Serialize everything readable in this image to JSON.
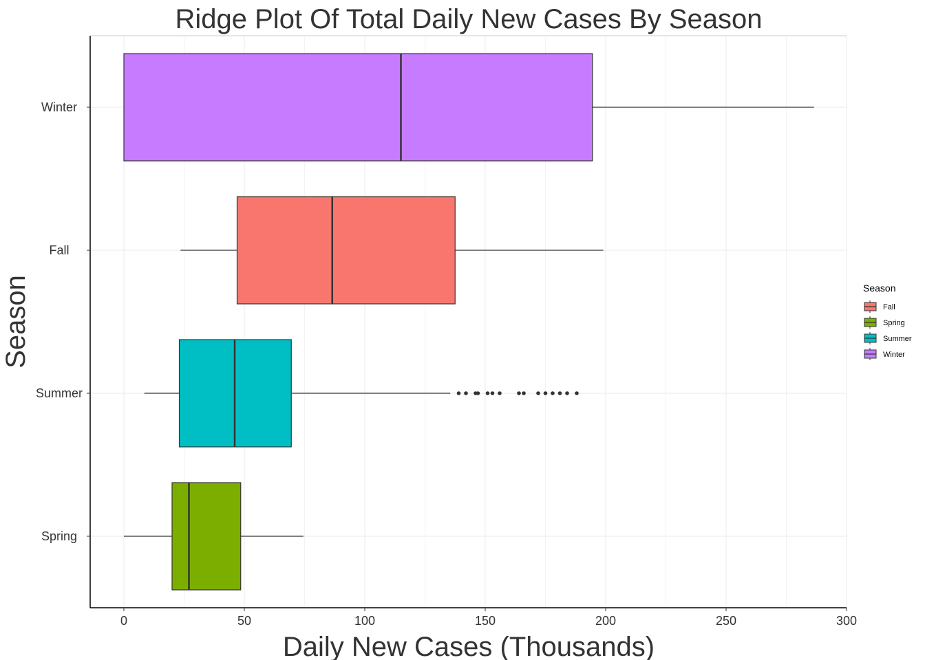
{
  "chart_data": {
    "type": "boxplot",
    "orientation": "horizontal",
    "title": "Ridge Plot Of Total Daily New Cases By Season",
    "xlabel": "Daily New Cases (Thousands)",
    "ylabel": "Season",
    "xlim": [
      -14,
      300
    ],
    "xticks": [
      0,
      50,
      100,
      150,
      200,
      250,
      300
    ],
    "grid": true,
    "categories": [
      "Spring",
      "Summer",
      "Fall",
      "Winter"
    ],
    "series": [
      {
        "name": "Spring",
        "color": "#7CAE00",
        "min": 0,
        "q1": 20,
        "median": 27,
        "q3": 48.5,
        "max": 74.5,
        "outliers": []
      },
      {
        "name": "Summer",
        "color": "#00BFC4",
        "min": 8.5,
        "q1": 23,
        "median": 46,
        "q3": 69.5,
        "max": 135.5,
        "outliers": [
          139,
          142,
          146,
          147,
          151,
          153,
          156,
          164,
          166,
          172,
          175,
          178,
          181,
          184,
          188
        ]
      },
      {
        "name": "Fall",
        "color": "#F8766D",
        "min": 23.5,
        "q1": 47,
        "median": 86.5,
        "q3": 137.5,
        "max": 199,
        "outliers": []
      },
      {
        "name": "Winter",
        "color": "#C77CFF",
        "min": 0,
        "q1": 0,
        "median": 115,
        "q3": 194.5,
        "max": 286.5,
        "outliers": []
      }
    ],
    "legend": {
      "title": "Season",
      "placement": "right",
      "items": [
        {
          "label": "Fall",
          "color": "#F8766D"
        },
        {
          "label": "Spring",
          "color": "#7CAE00"
        },
        {
          "label": "Summer",
          "color": "#00BFC4"
        },
        {
          "label": "Winter",
          "color": "#C77CFF"
        }
      ]
    }
  }
}
